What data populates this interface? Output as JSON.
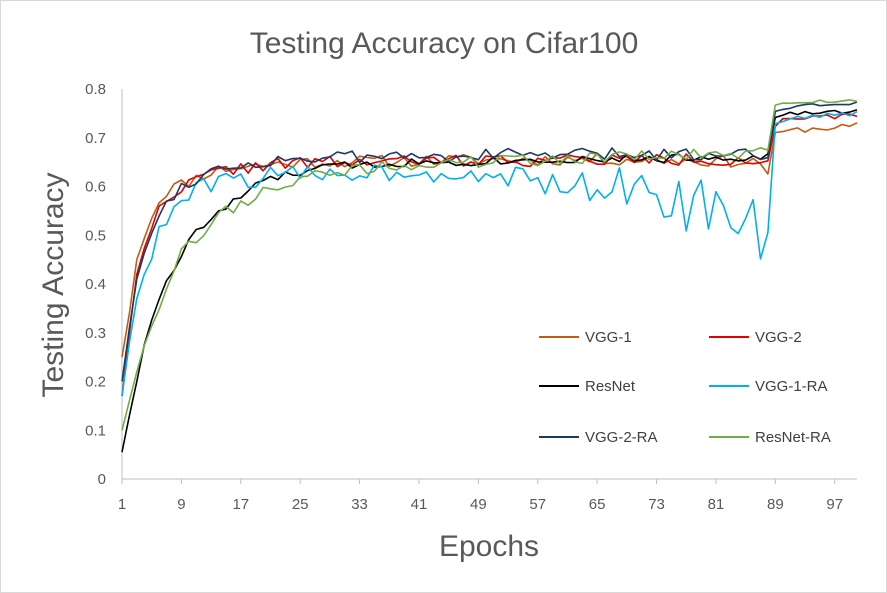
{
  "chart_data": {
    "type": "line",
    "title": "Testing Accuracy on Cifar100",
    "xlabel": "Epochs",
    "ylabel": "Testing Accuracy",
    "xlim": [
      1,
      100
    ],
    "ylim": [
      0,
      0.8
    ],
    "x_ticks": [
      "1",
      "9",
      "17",
      "25",
      "33",
      "41",
      "49",
      "57",
      "65",
      "73",
      "81",
      "89",
      "97"
    ],
    "y_ticks": [
      "0",
      "0.1",
      "0.2",
      "0.3",
      "0.4",
      "0.5",
      "0.6",
      "0.7",
      "0.8"
    ],
    "grid": false,
    "legend_position": "bottom-right inside plot",
    "series": [
      {
        "name": "VGG-1",
        "color": "#c55a11",
        "anchors": [
          [
            1,
            0.25
          ],
          [
            2,
            0.34
          ],
          [
            3,
            0.45
          ],
          [
            4,
            0.5
          ],
          [
            5,
            0.54
          ],
          [
            6,
            0.57
          ],
          [
            7,
            0.59
          ],
          [
            8,
            0.6
          ],
          [
            9,
            0.605
          ],
          [
            10,
            0.61
          ],
          [
            12,
            0.625
          ],
          [
            14,
            0.635
          ],
          [
            17,
            0.64
          ],
          [
            21,
            0.645
          ],
          [
            25,
            0.65
          ],
          [
            33,
            0.652
          ],
          [
            41,
            0.653
          ],
          [
            49,
            0.655
          ],
          [
            57,
            0.655
          ],
          [
            65,
            0.656
          ],
          [
            73,
            0.655
          ],
          [
            81,
            0.652
          ],
          [
            87,
            0.65
          ],
          [
            88,
            0.63
          ],
          [
            89,
            0.705
          ],
          [
            90,
            0.712
          ],
          [
            92,
            0.716
          ],
          [
            96,
            0.72
          ],
          [
            100,
            0.725
          ]
        ],
        "noise": [
          0.012,
          0.006
        ],
        "seed": 11
      },
      {
        "name": "VGG-2",
        "color": "#e00000",
        "anchors": [
          [
            1,
            0.17
          ],
          [
            2,
            0.3
          ],
          [
            3,
            0.42
          ],
          [
            4,
            0.48
          ],
          [
            5,
            0.52
          ],
          [
            6,
            0.55
          ],
          [
            7,
            0.57
          ],
          [
            8,
            0.59
          ],
          [
            9,
            0.6
          ],
          [
            10,
            0.605
          ],
          [
            12,
            0.62
          ],
          [
            14,
            0.63
          ],
          [
            17,
            0.638
          ],
          [
            21,
            0.645
          ],
          [
            25,
            0.648
          ],
          [
            33,
            0.65
          ],
          [
            41,
            0.652
          ],
          [
            49,
            0.654
          ],
          [
            57,
            0.654
          ],
          [
            65,
            0.655
          ],
          [
            73,
            0.655
          ],
          [
            81,
            0.655
          ],
          [
            87,
            0.655
          ],
          [
            88,
            0.65
          ],
          [
            89,
            0.725
          ],
          [
            90,
            0.735
          ],
          [
            92,
            0.738
          ],
          [
            96,
            0.742
          ],
          [
            100,
            0.745
          ]
        ],
        "noise": [
          0.013,
          0.005
        ],
        "seed": 22
      },
      {
        "name": "ResNet",
        "color": "#000000",
        "anchors": [
          [
            1,
            0.055
          ],
          [
            2,
            0.13
          ],
          [
            3,
            0.2
          ],
          [
            4,
            0.28
          ],
          [
            5,
            0.33
          ],
          [
            6,
            0.37
          ],
          [
            7,
            0.4
          ],
          [
            8,
            0.43
          ],
          [
            9,
            0.46
          ],
          [
            10,
            0.49
          ],
          [
            12,
            0.52
          ],
          [
            14,
            0.545
          ],
          [
            17,
            0.58
          ],
          [
            19,
            0.6
          ],
          [
            21,
            0.615
          ],
          [
            25,
            0.63
          ],
          [
            29,
            0.64
          ],
          [
            33,
            0.645
          ],
          [
            41,
            0.65
          ],
          [
            49,
            0.652
          ],
          [
            57,
            0.655
          ],
          [
            65,
            0.657
          ],
          [
            73,
            0.657
          ],
          [
            81,
            0.66
          ],
          [
            87,
            0.662
          ],
          [
            88,
            0.66
          ],
          [
            89,
            0.74
          ],
          [
            90,
            0.748
          ],
          [
            92,
            0.75
          ],
          [
            96,
            0.752
          ],
          [
            100,
            0.755
          ]
        ],
        "noise": [
          0.009,
          0.004
        ],
        "seed": 33
      },
      {
        "name": "VGG-1-RA",
        "color": "#00b0f0",
        "anchors": [
          [
            1,
            0.17
          ],
          [
            2,
            0.28
          ],
          [
            3,
            0.37
          ],
          [
            4,
            0.43
          ],
          [
            5,
            0.46
          ],
          [
            6,
            0.5
          ],
          [
            7,
            0.53
          ],
          [
            8,
            0.55
          ],
          [
            9,
            0.57
          ],
          [
            10,
            0.58
          ],
          [
            12,
            0.6
          ],
          [
            14,
            0.61
          ],
          [
            17,
            0.615
          ],
          [
            21,
            0.62
          ],
          [
            25,
            0.625
          ],
          [
            33,
            0.63
          ],
          [
            41,
            0.63
          ],
          [
            49,
            0.625
          ],
          [
            53,
            0.62
          ],
          [
            57,
            0.61
          ],
          [
            61,
            0.605
          ],
          [
            65,
            0.6
          ],
          [
            69,
            0.595
          ],
          [
            73,
            0.575
          ],
          [
            77,
            0.565
          ],
          [
            80,
            0.555
          ],
          [
            82,
            0.53
          ],
          [
            84,
            0.51
          ],
          [
            86,
            0.5
          ],
          [
            87,
            0.48
          ],
          [
            88,
            0.45
          ],
          [
            89,
            0.725
          ],
          [
            90,
            0.735
          ],
          [
            92,
            0.742
          ],
          [
            96,
            0.746
          ],
          [
            100,
            0.75
          ]
        ],
        "noise": [
          0.02,
          0.004
        ],
        "seed": 44
      },
      {
        "name": "VGG-2-RA",
        "color": "#1f3864",
        "anchors": [
          [
            1,
            0.2
          ],
          [
            2,
            0.31
          ],
          [
            3,
            0.41
          ],
          [
            4,
            0.47
          ],
          [
            5,
            0.51
          ],
          [
            6,
            0.54
          ],
          [
            7,
            0.565
          ],
          [
            8,
            0.585
          ],
          [
            9,
            0.6
          ],
          [
            10,
            0.61
          ],
          [
            12,
            0.625
          ],
          [
            14,
            0.635
          ],
          [
            17,
            0.645
          ],
          [
            21,
            0.652
          ],
          [
            25,
            0.658
          ],
          [
            33,
            0.66
          ],
          [
            41,
            0.662
          ],
          [
            49,
            0.665
          ],
          [
            57,
            0.665
          ],
          [
            65,
            0.666
          ],
          [
            73,
            0.666
          ],
          [
            81,
            0.667
          ],
          [
            87,
            0.668
          ],
          [
            88,
            0.66
          ],
          [
            89,
            0.755
          ],
          [
            90,
            0.762
          ],
          [
            92,
            0.765
          ],
          [
            96,
            0.768
          ],
          [
            100,
            0.772
          ]
        ],
        "noise": [
          0.013,
          0.004
        ],
        "seed": 55
      },
      {
        "name": "ResNet-RA",
        "color": "#70ad47",
        "anchors": [
          [
            1,
            0.1
          ],
          [
            2,
            0.16
          ],
          [
            3,
            0.22
          ],
          [
            4,
            0.28
          ],
          [
            5,
            0.32
          ],
          [
            6,
            0.36
          ],
          [
            7,
            0.4
          ],
          [
            8,
            0.43
          ],
          [
            9,
            0.46
          ],
          [
            10,
            0.48
          ],
          [
            12,
            0.51
          ],
          [
            14,
            0.54
          ],
          [
            17,
            0.565
          ],
          [
            19,
            0.58
          ],
          [
            21,
            0.6
          ],
          [
            25,
            0.615
          ],
          [
            29,
            0.625
          ],
          [
            33,
            0.635
          ],
          [
            41,
            0.645
          ],
          [
            49,
            0.65
          ],
          [
            57,
            0.655
          ],
          [
            65,
            0.66
          ],
          [
            73,
            0.662
          ],
          [
            81,
            0.665
          ],
          [
            87,
            0.668
          ],
          [
            88,
            0.668
          ],
          [
            89,
            0.765
          ],
          [
            90,
            0.772
          ],
          [
            92,
            0.774
          ],
          [
            96,
            0.775
          ],
          [
            100,
            0.778
          ]
        ],
        "noise": [
          0.013,
          0.004
        ],
        "seed": 66
      }
    ]
  }
}
